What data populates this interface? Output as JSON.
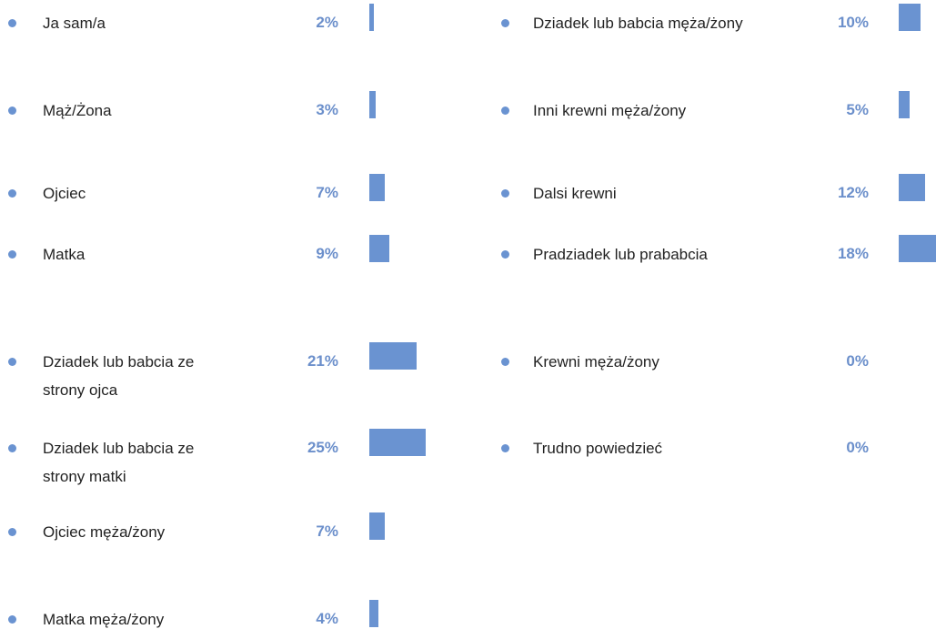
{
  "chart_data": {
    "type": "bar",
    "categories": [
      "Ja sam/a",
      "Mąż/Żona",
      "Ojciec",
      "Matka",
      "Dziadek lub babcia ze strony ojca",
      "Dziadek lub babcia ze strony matki",
      "Ojciec męża/żony",
      "Matka męża/żony",
      "Dziadek lub babcia męża/żony",
      "Inni krewni męża/żony",
      "Dalsi krewni",
      "Pradziadek lub prababcia",
      "Krewni męża/żony",
      "Trudno powiedzieć"
    ],
    "values": [
      2,
      3,
      7,
      9,
      21,
      25,
      7,
      4,
      10,
      5,
      12,
      18,
      0,
      0
    ],
    "value_labels": [
      "2%",
      "3%",
      "7%",
      "9%",
      "21%",
      "25%",
      "7%",
      "4%",
      "10%",
      "5%",
      "12%",
      "18%",
      "0%",
      "0%"
    ],
    "color": "#6a93d1"
  }
}
